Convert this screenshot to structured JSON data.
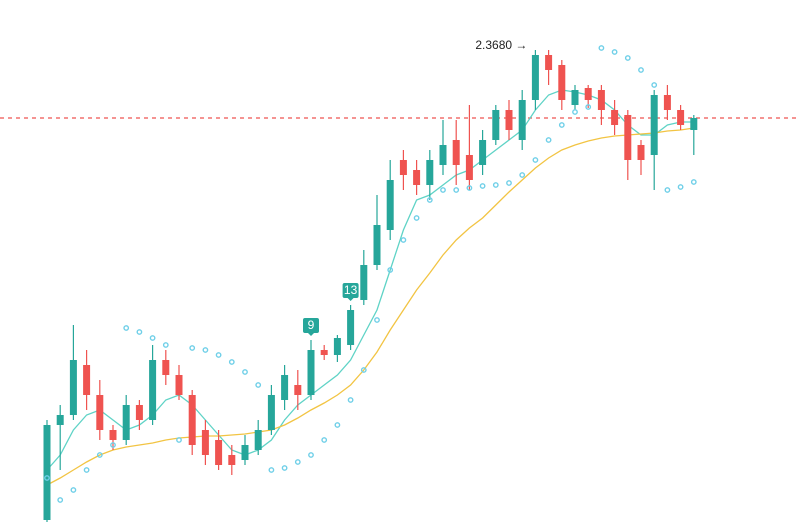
{
  "chart_data": {
    "type": "candlestick",
    "ylim": [
      2.132,
      2.393
    ],
    "up_color": "#26a69a",
    "down_color": "#ef5350",
    "open": [
      2.133,
      2.1805,
      2.1855,
      2.2105,
      2.1955,
      2.178,
      2.173,
      2.1905,
      2.183,
      2.213,
      2.2055,
      2.1955,
      2.178,
      2.173,
      2.1655,
      2.163,
      2.168,
      2.178,
      2.193,
      2.2005,
      2.1955,
      2.218,
      2.2155,
      2.2205,
      2.243,
      2.2605,
      2.278,
      2.313,
      2.308,
      2.3005,
      2.3105,
      2.323,
      2.3155,
      2.3105,
      2.323,
      2.338,
      2.323,
      2.343,
      2.3655,
      2.3605,
      2.3405,
      2.349,
      2.348,
      2.338,
      2.3355,
      2.3205,
      2.3155,
      2.3455,
      2.338,
      2.328
    ],
    "high": [
      2.183,
      2.1905,
      2.2305,
      2.218,
      2.203,
      2.1805,
      2.1955,
      2.193,
      2.2205,
      2.218,
      2.2105,
      2.198,
      2.183,
      2.178,
      2.1705,
      2.1755,
      2.183,
      2.2005,
      2.2105,
      2.208,
      2.223,
      2.2205,
      2.2255,
      2.2405,
      2.268,
      2.2955,
      2.313,
      2.318,
      2.313,
      2.318,
      2.333,
      2.333,
      2.3405,
      2.328,
      2.3405,
      2.343,
      2.348,
      2.368,
      2.368,
      2.363,
      2.3505,
      2.3505,
      2.3505,
      2.343,
      2.338,
      2.323,
      2.348,
      2.3505,
      2.3405,
      2.3355
    ],
    "low": [
      2.132,
      2.158,
      2.183,
      2.188,
      2.173,
      2.168,
      2.1705,
      2.178,
      2.1805,
      2.2005,
      2.193,
      2.1655,
      2.1605,
      2.158,
      2.1555,
      2.1605,
      2.1655,
      2.1755,
      2.188,
      2.188,
      2.193,
      2.213,
      2.212,
      2.218,
      2.2405,
      2.258,
      2.273,
      2.298,
      2.2955,
      2.293,
      2.3055,
      2.3005,
      2.298,
      2.3055,
      2.3205,
      2.323,
      2.318,
      2.338,
      2.3505,
      2.338,
      2.338,
      2.339,
      2.3305,
      2.3255,
      2.303,
      2.3055,
      2.298,
      2.333,
      2.328,
      2.3155
    ],
    "close": [
      2.1805,
      2.1855,
      2.213,
      2.1955,
      2.178,
      2.173,
      2.1905,
      2.183,
      2.213,
      2.2055,
      2.1955,
      2.1705,
      2.1655,
      2.1605,
      2.1605,
      2.1705,
      2.178,
      2.1955,
      2.2055,
      2.1955,
      2.218,
      2.2155,
      2.224,
      2.238,
      2.2605,
      2.2805,
      2.303,
      2.3055,
      2.3005,
      2.313,
      2.3205,
      2.3105,
      2.303,
      2.323,
      2.338,
      2.328,
      2.343,
      2.3655,
      2.358,
      2.343,
      2.348,
      2.343,
      2.338,
      2.3305,
      2.313,
      2.313,
      2.3455,
      2.338,
      2.3305,
      2.334
    ],
    "overlays": [
      {
        "color": "#5fd3c6",
        "values": [
          2.158,
          2.1655,
          2.178,
          2.1855,
          2.188,
          2.183,
          2.178,
          2.1805,
          2.1855,
          2.193,
          2.1955,
          2.1905,
          2.183,
          2.1755,
          2.168,
          2.1655,
          2.168,
          2.173,
          2.183,
          2.1905,
          2.1955,
          2.2005,
          2.2055,
          2.213,
          2.2255,
          2.238,
          2.258,
          2.278,
          2.293,
          2.2955,
          2.3005,
          2.3055,
          2.308,
          2.313,
          2.318,
          2.323,
          2.328,
          2.338,
          2.3455,
          2.348,
          2.347,
          2.3455,
          2.343,
          2.338,
          2.3305,
          2.3255,
          2.3255,
          2.3305,
          2.332,
          2.332
        ]
      },
      {
        "color": "#f2c443",
        "values": [
          2.1505,
          2.154,
          2.158,
          2.162,
          2.1655,
          2.168,
          2.1695,
          2.1705,
          2.1715,
          2.173,
          2.174,
          2.1745,
          2.175,
          2.175,
          2.1755,
          2.176,
          2.177,
          2.178,
          2.1805,
          2.184,
          2.188,
          2.1915,
          2.1955,
          2.2005,
          2.208,
          2.217,
          2.228,
          2.238,
          2.248,
          2.2565,
          2.2655,
          2.273,
          2.279,
          2.284,
          2.2905,
          2.297,
          2.303,
          2.309,
          2.314,
          2.318,
          2.3205,
          2.3225,
          2.324,
          2.325,
          2.3255,
          2.326,
          2.3265,
          2.3275,
          2.328,
          2.329
        ]
      }
    ],
    "sar": {
      "color": "#6fcfe8",
      "values": [
        2.154,
        2.143,
        2.148,
        2.158,
        2.1655,
        2.1705,
        2.229,
        2.227,
        2.224,
        2.2205,
        2.173,
        2.219,
        2.218,
        2.2155,
        2.212,
        2.207,
        2.2005,
        2.158,
        2.159,
        2.162,
        2.1655,
        2.173,
        2.1805,
        2.193,
        2.208,
        2.233,
        2.258,
        2.273,
        2.284,
        2.293,
        2.298,
        2.298,
        2.299,
        2.3,
        2.3005,
        2.3015,
        2.3055,
        2.313,
        2.323,
        2.3305,
        2.337,
        2.3395,
        2.369,
        2.367,
        2.364,
        2.358,
        2.3505,
        2.298,
        2.2995,
        2.302
      ]
    },
    "price_line": {
      "value": 2.334,
      "color": "#ef5350"
    },
    "annotation": "2.3680 →",
    "markers": [
      9,
      13
    ]
  }
}
